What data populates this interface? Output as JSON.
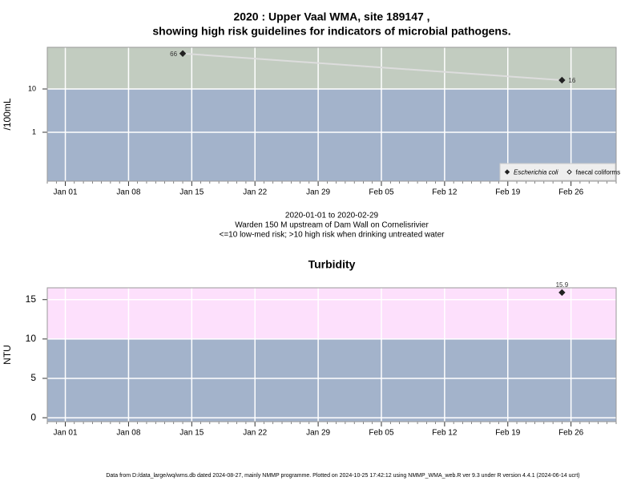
{
  "chart_data": [
    {
      "type": "line",
      "title": [
        "2020 : Upper Vaal WMA, site 189147 ,",
        "showing high risk guidelines for indicators of microbial pathogens."
      ],
      "ylabel": "/100mL",
      "log_y": true,
      "ylim": [
        0.074,
        92
      ],
      "yticks": [
        1,
        10
      ],
      "xlim": [
        "2019-12-30",
        "2020-03-02"
      ],
      "xticks": [
        {
          "value": "2020-01-01",
          "label": "Jan 01"
        },
        {
          "value": "2020-01-08",
          "label": "Jan 08"
        },
        {
          "value": "2020-01-15",
          "label": "Jan 15"
        },
        {
          "value": "2020-01-22",
          "label": "Jan 22"
        },
        {
          "value": "2020-01-29",
          "label": "Jan 29"
        },
        {
          "value": "2020-02-05",
          "label": "Feb 05"
        },
        {
          "value": "2020-02-12",
          "label": "Feb 12"
        },
        {
          "value": "2020-02-19",
          "label": "Feb 19"
        },
        {
          "value": "2020-02-26",
          "label": "Feb 26"
        }
      ],
      "threshold": 10,
      "high_color": "#c2ccc0",
      "low_color": "#a3b3cb",
      "grid": true,
      "line_color": "#dddddd",
      "legend": "bottom-right",
      "series": [
        {
          "name": "Escherichia coli",
          "color": "#222222",
          "marker": "filled",
          "x": [
            "2020-01-14",
            "2020-02-25"
          ],
          "values": [
            66,
            16
          ]
        },
        {
          "name": "faecal coliforms",
          "color": "#222222",
          "marker": "open",
          "x": [],
          "values": []
        }
      ],
      "caption": [
        "2020-01-01 to 2020-02-29",
        "Warden 150 M upstream of Dam Wall on Cornelisrivier",
        "<=10 low-med risk; >10 high risk when drinking untreated water"
      ]
    },
    {
      "type": "scatter",
      "title": [
        "Turbidity"
      ],
      "ylabel": "NTU",
      "log_y": false,
      "ylim": [
        -0.5,
        16.5
      ],
      "yticks": [
        0,
        5,
        10,
        15
      ],
      "xlim": [
        "2019-12-30",
        "2020-03-02"
      ],
      "xticks": [
        {
          "value": "2020-01-01",
          "label": "Jan 01"
        },
        {
          "value": "2020-01-08",
          "label": "Jan 08"
        },
        {
          "value": "2020-01-15",
          "label": "Jan 15"
        },
        {
          "value": "2020-01-22",
          "label": "Jan 22"
        },
        {
          "value": "2020-01-29",
          "label": "Jan 29"
        },
        {
          "value": "2020-02-05",
          "label": "Feb 05"
        },
        {
          "value": "2020-02-12",
          "label": "Feb 12"
        },
        {
          "value": "2020-02-19",
          "label": "Feb 19"
        },
        {
          "value": "2020-02-26",
          "label": "Feb 26"
        }
      ],
      "threshold": 10,
      "high_color": "#fde0fc",
      "low_color": "#a3b3cb",
      "grid": true,
      "series": [
        {
          "color": "#222222",
          "marker": "filled",
          "x": [
            "2020-02-25"
          ],
          "values": [
            15.9
          ]
        }
      ]
    }
  ],
  "footer": "Data from D:/data_large/wq/wms.db dated 2024-08-27, mainly NMMP programme. Plotted on 2024-10-25 17:42:12 using NMMP_WMA_web.R ver 9.3 under R version 4.4.1 (2024-06-14 ucrt)"
}
